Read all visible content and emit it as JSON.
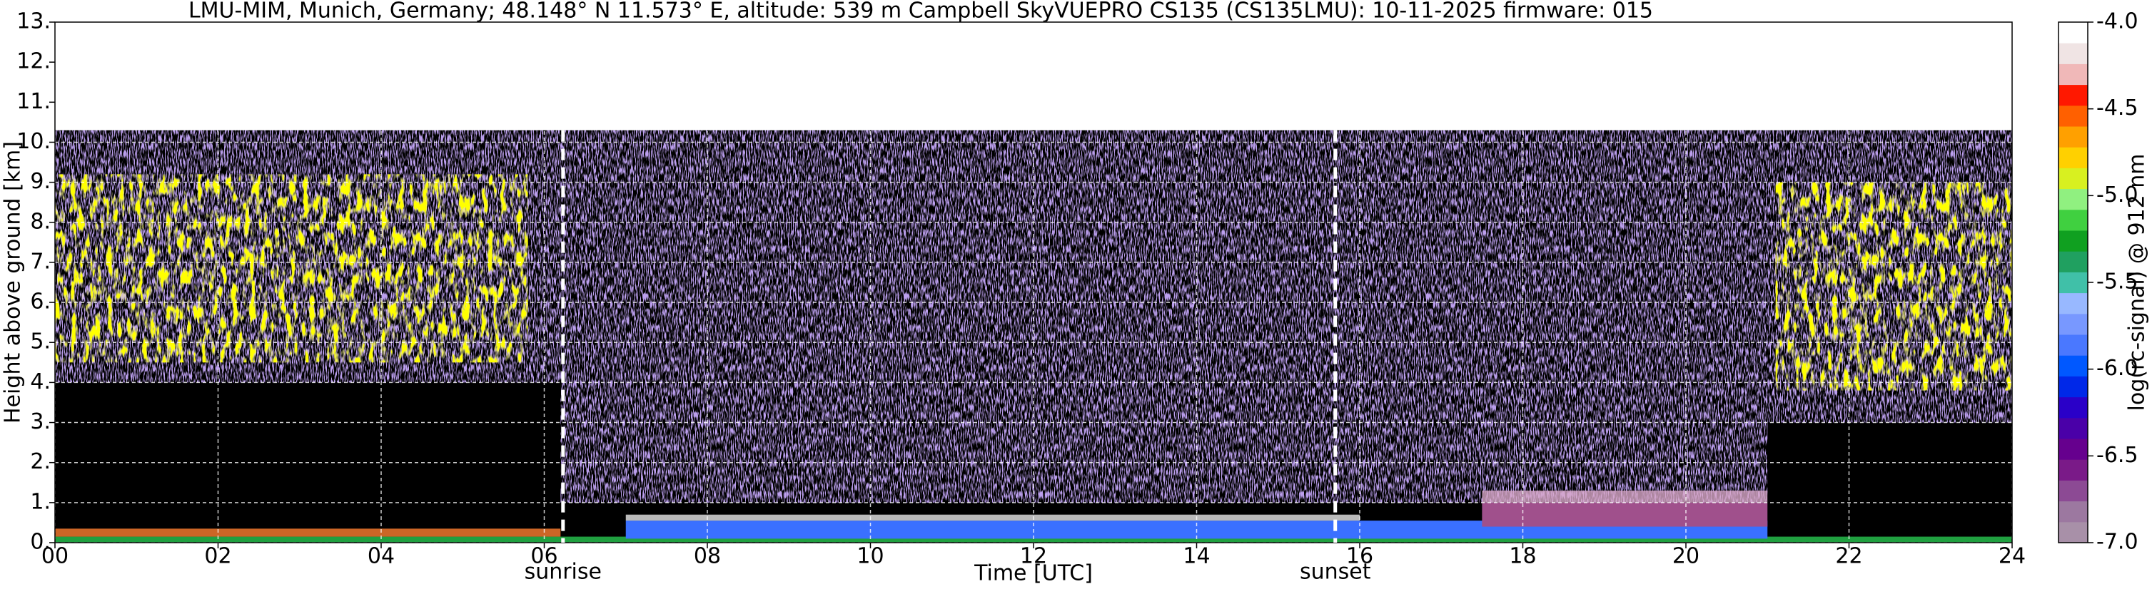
{
  "chart_data": {
    "type": "heatmap",
    "title": "LMU-MIM, Munich, Germany; 48.148° N 11.573° E, altitude: 539 m    Campbell SkyVUEPRO CS135 (CS135LMU): 10-11-2025    firmware: 015",
    "xlabel": "Time [UTC]",
    "ylabel": "Height above ground [km]",
    "xlim": [
      0,
      24
    ],
    "xticks": [
      {
        "value": 0,
        "label": "00"
      },
      {
        "value": 2,
        "label": "02"
      },
      {
        "value": 4,
        "label": "04"
      },
      {
        "value": 6,
        "label": "06"
      },
      {
        "value": 8,
        "label": "08"
      },
      10,
      12,
      14,
      16,
      18,
      20,
      22,
      24
    ],
    "ylim": [
      0,
      13
    ],
    "yticks": [
      {
        "value": 0,
        "label": "0."
      },
      {
        "value": 1,
        "label": "1."
      },
      {
        "value": 2,
        "label": "2."
      },
      {
        "value": 3,
        "label": "3."
      },
      {
        "value": 4,
        "label": "4."
      },
      {
        "value": 5,
        "label": "5."
      },
      {
        "value": 6,
        "label": "6."
      },
      {
        "value": 7,
        "label": "7."
      },
      {
        "value": 8,
        "label": "8."
      },
      {
        "value": 9,
        "label": "9."
      },
      {
        "value": 10,
        "label": "10."
      },
      {
        "value": 11,
        "label": "11."
      },
      {
        "value": 12,
        "label": "12."
      },
      {
        "value": 13,
        "label": "13."
      }
    ],
    "grid": true,
    "annotations": [
      {
        "text": "sunrise",
        "x": 6.23
      },
      {
        "text": "sunset",
        "x": 15.7
      }
    ],
    "colorbar": {
      "label": "log(rc-signal) @ 912 nm",
      "clim": [
        -7,
        -4
      ],
      "ticks": [
        {
          "value": -7,
          "label": "-7.0"
        },
        {
          "value": -6.5,
          "label": "-6.5"
        },
        {
          "value": -6,
          "label": "-6.0"
        },
        {
          "value": -5.5,
          "label": "-5.5"
        },
        {
          "value": -5,
          "label": "-5.0"
        },
        {
          "value": -4.5,
          "label": "-4.5"
        },
        {
          "value": -4,
          "label": "-4.0"
        }
      ],
      "colors": [
        "#a890a8",
        "#9c78a0",
        "#8c4a94",
        "#7a1a88",
        "#66008e",
        "#4a00a8",
        "#2a00c8",
        "#0028e8",
        "#0058ff",
        "#4a78ff",
        "#7898ff",
        "#98b8ff",
        "#40c0a8",
        "#20a060",
        "#10a020",
        "#40d040",
        "#90f080",
        "#d8f020",
        "#ffd000",
        "#ffa000",
        "#ff6000",
        "#ff1800",
        "#f0b8b8",
        "#f0e4e4",
        "#ffffff"
      ]
    }
  }
}
